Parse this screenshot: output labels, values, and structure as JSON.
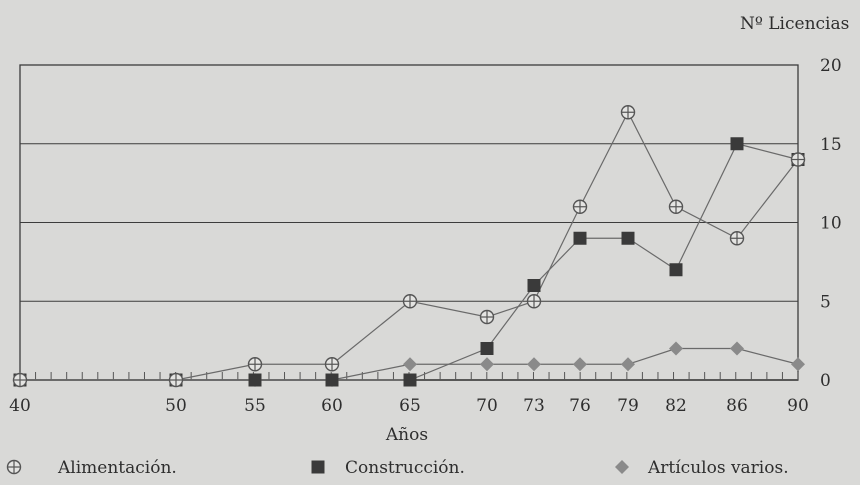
{
  "chart_data": {
    "type": "line",
    "ylabel": "Nº Licencias",
    "xlabel": "Años",
    "x": [
      "40",
      "50",
      "55",
      "60",
      "65",
      "70",
      "73",
      "76",
      "79",
      "82",
      "86",
      "90"
    ],
    "ylim": [
      0,
      20
    ],
    "yticks": [
      0,
      5,
      10,
      15,
      20
    ],
    "y_axis_position": "right",
    "grid": "horizontal",
    "legend_position": "bottom",
    "series": [
      {
        "name": "Alimentación.",
        "marker": "circle-plus",
        "color": "#555555",
        "values": [
          0,
          0,
          1,
          1,
          5,
          4,
          5,
          11,
          17,
          11,
          9,
          14
        ]
      },
      {
        "name": "Construcción.",
        "marker": "square",
        "color": "#3a3a3a",
        "values": [
          0,
          0,
          0,
          0,
          0,
          2,
          6,
          9,
          9,
          7,
          15,
          14
        ]
      },
      {
        "name": "Artículos varios.",
        "marker": "diamond",
        "color": "#8a8a8a",
        "values": [
          0,
          0,
          0,
          0,
          1,
          1,
          1,
          1,
          1,
          2,
          2,
          1
        ]
      }
    ]
  }
}
